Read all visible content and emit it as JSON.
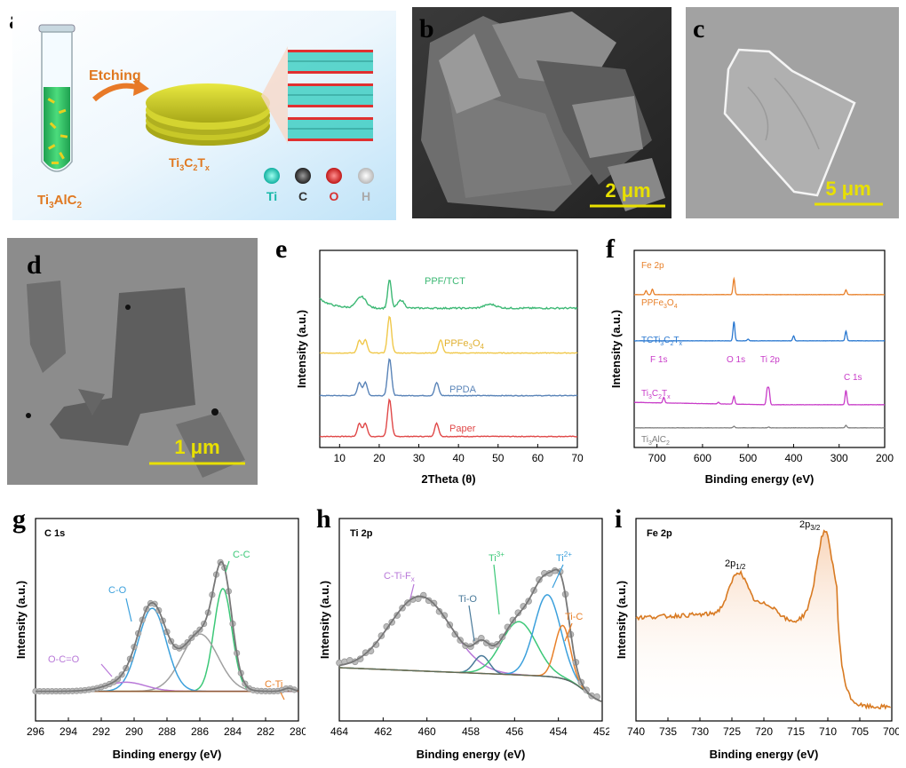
{
  "panels": {
    "a": {
      "letter": "a",
      "etching_label": "Etching",
      "precursor": "Ti",
      "precursor_sub": "3",
      "precursor_rest": "AlC",
      "precursor_sub2": "2",
      "mxene_label_parts": [
        "Ti",
        "3",
        "C",
        "2",
        "T",
        "x"
      ],
      "legend": [
        "Ti",
        "C",
        "O",
        "H"
      ],
      "legend_colors": [
        "#1fd0c0",
        "#444444",
        "#e03030",
        "#e8e8e8"
      ]
    },
    "b": {
      "letter": "b",
      "scalebar": "2 μm"
    },
    "c": {
      "letter": "c",
      "scalebar": "5 μm"
    },
    "d": {
      "letter": "d",
      "scalebar": "1 μm"
    },
    "e": {
      "letter": "e"
    },
    "f": {
      "letter": "f"
    },
    "g": {
      "letter": "g"
    },
    "h": {
      "letter": "h"
    },
    "i": {
      "letter": "i"
    }
  },
  "chart_data": [
    {
      "id": "e",
      "type": "line",
      "xlabel": "2Theta (θ)",
      "ylabel": "Intensity (a.u.)",
      "xlim": [
        5,
        70
      ],
      "xticks": [
        10,
        20,
        30,
        40,
        50,
        60,
        70
      ],
      "series": [
        {
          "name": "Paper",
          "color": "#e04848",
          "peaks": [
            15.0,
            16.5,
            22.6,
            34.5
          ]
        },
        {
          "name": "PPDA",
          "color": "#5a84b8",
          "peaks": [
            15.0,
            16.5,
            22.6,
            34.5
          ]
        },
        {
          "name": "PPFe3O4",
          "color": "#f0c84a",
          "peaks": [
            15.0,
            16.5,
            22.6,
            35.5
          ]
        },
        {
          "name": "PPF/TCT",
          "color": "#3cb874",
          "peaks": [
            15.5,
            22.6,
            25.5,
            48.0
          ]
        }
      ]
    },
    {
      "id": "f",
      "type": "line",
      "xlabel": "Binding energy (eV)",
      "ylabel": "Intensity (a.u.)",
      "xlim": [
        750,
        200
      ],
      "xticks": [
        700,
        600,
        500,
        400,
        300,
        200
      ],
      "series": [
        {
          "name": "Ti3AlC2",
          "color": "#808080"
        },
        {
          "name": "Ti3C2Tx",
          "color": "#c83cc8"
        },
        {
          "name": "TCTi3C2Tx",
          "color": "#2a78d0"
        },
        {
          "name": "PPFe3O4",
          "color": "#e8802a"
        }
      ],
      "annotations": [
        "Fe 2p",
        "F 1s",
        "O 1s",
        "Ti 2p",
        "C 1s"
      ],
      "series_labels": [
        {
          "parts": [
            "PPFe",
            "3",
            "O",
            "4"
          ]
        },
        {
          "parts": [
            "TCTi",
            "3",
            "C",
            "2",
            "T",
            "x"
          ]
        },
        {
          "parts": [
            "Ti",
            "3",
            "C",
            "2",
            "T",
            "x"
          ]
        },
        {
          "parts": [
            "Ti",
            "3",
            "AlC",
            "2"
          ]
        }
      ]
    },
    {
      "id": "g",
      "type": "line",
      "title": "C 1s",
      "xlabel": "Binding energy (eV)",
      "ylabel": "Intensity (a.u.)",
      "xlim": [
        296,
        280
      ],
      "xticks": [
        296,
        294,
        292,
        290,
        288,
        286,
        284,
        282,
        280
      ],
      "components": [
        {
          "name": "C-C",
          "center": 284.6,
          "height": 0.68,
          "width": 0.55,
          "color": "#3cc878"
        },
        {
          "name": "C-C(gray)",
          "center": 286.0,
          "height": 0.38,
          "width": 1.1,
          "color": "#a0a0a0"
        },
        {
          "name": "C-O",
          "center": 288.9,
          "height": 0.55,
          "width": 0.85,
          "color": "#3ca0dc"
        },
        {
          "name": "O-C=O",
          "center": 290.5,
          "height": 0.06,
          "width": 1.2,
          "color": "#b878d8"
        },
        {
          "name": "C-Ti",
          "center": 280.6,
          "height": 0.02,
          "width": 0.3,
          "color": "#e8802a"
        }
      ],
      "labels": [
        "C-C",
        "C-O",
        "O-C=O",
        "C-Ti"
      ]
    },
    {
      "id": "h",
      "type": "line",
      "title": "Ti 2p",
      "xlabel": "Binding energy (eV)",
      "ylabel": "Intensity (a.u.)",
      "xlim": [
        464,
        452
      ],
      "xticks": [
        464,
        462,
        460,
        458,
        456,
        454,
        452
      ],
      "components": [
        {
          "name": "C-Ti-Fx",
          "center": 460.3,
          "height": 0.42,
          "width": 1.4,
          "color": "#b878d8"
        },
        {
          "name": "Ti-O",
          "center": 457.5,
          "height": 0.1,
          "width": 0.35,
          "color": "#4a7a9a"
        },
        {
          "name": "Ti3+",
          "center": 455.8,
          "height": 0.3,
          "width": 0.8,
          "color": "#3cc878"
        },
        {
          "name": "Ti2+",
          "center": 454.5,
          "height": 0.46,
          "width": 0.6,
          "color": "#3ca0dc"
        },
        {
          "name": "Ti-C",
          "center": 453.8,
          "height": 0.3,
          "width": 0.35,
          "color": "#e8802a"
        }
      ],
      "labels": [
        "C-Ti-F",
        "x",
        "Ti-O",
        "Ti",
        "3+",
        "Ti",
        "2+",
        "Ti-C"
      ]
    },
    {
      "id": "i",
      "type": "line",
      "title": "Fe 2p",
      "xlabel": "Binding energy (eV)",
      "ylabel": "Intensity (a.u.)",
      "xlim": [
        740,
        700
      ],
      "xticks": [
        740,
        735,
        730,
        725,
        720,
        715,
        710,
        705,
        700
      ],
      "peaks": [
        {
          "name": "2p1/2",
          "center": 724.0
        },
        {
          "name": "2p3/2",
          "center": 710.5
        }
      ],
      "labels": [
        "2p",
        "1/2",
        "2p",
        "3/2"
      ],
      "color": "#d87a22"
    }
  ]
}
